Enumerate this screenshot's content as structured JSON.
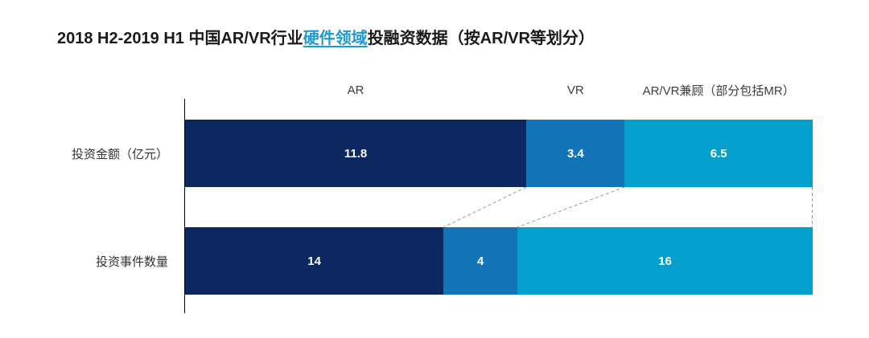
{
  "title": {
    "prefix": "2018 H2-2019 H1 中国AR/VR行业",
    "highlight": "硬件领域",
    "suffix": "投融资数据（按AR/VR等划分）"
  },
  "colors": {
    "series": [
      "#0D2760",
      "#1375B7",
      "#03A0CE"
    ],
    "title_highlight": "#1B9AD8",
    "axis": "#000000",
    "connector": "#999999",
    "bar_label": "#FFFFFF",
    "header_text": "#3D3D3D"
  },
  "chart_data": {
    "type": "bar",
    "orientation": "horizontal-stacked",
    "title": "2018 H2-2019 H1 中国AR/VR行业硬件领域投融资数据（按AR/VR等划分）",
    "legend_position": "top",
    "grid": false,
    "series_names": [
      "AR",
      "VR",
      "AR/VR兼顾（部分包括MR）"
    ],
    "rows": [
      {
        "label": "投资金额（亿元）",
        "values": [
          11.8,
          3.4,
          6.5
        ]
      },
      {
        "label": "投资事件数量",
        "values": [
          14,
          4,
          16
        ]
      }
    ],
    "value_labels": [
      [
        "11.8",
        "3.4",
        "6.5"
      ],
      [
        "14",
        "4",
        "16"
      ]
    ]
  }
}
